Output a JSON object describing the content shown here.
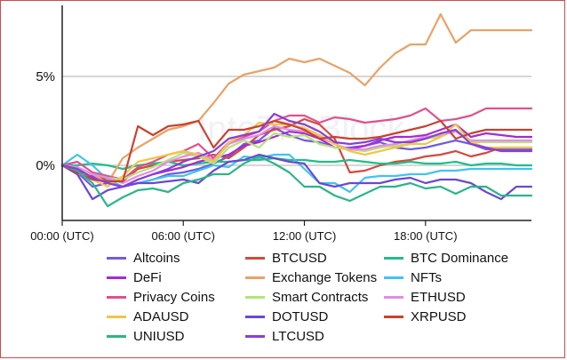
{
  "chart_data": {
    "type": "line",
    "watermark": "IntoTheBlock",
    "x_ticks": [
      "00:00 (UTC)",
      "06:00 (UTC)",
      "12:00 (UTC)",
      "18:00 (UTC)"
    ],
    "x_tick_hours": [
      0,
      6,
      12,
      18
    ],
    "y_ticks": [
      "5%",
      "0%"
    ],
    "y_tick_values": [
      5,
      0
    ],
    "ylim": [
      -3.1,
      9.0
    ],
    "xlim": [
      0,
      23.25
    ],
    "grid": "horizontal",
    "legend_position": "bottom",
    "x": [
      0,
      0.75,
      1.5,
      2.25,
      3,
      3.75,
      4.5,
      5.25,
      6,
      6.75,
      7.5,
      8.25,
      9,
      9.75,
      10.5,
      11.25,
      12,
      12.75,
      13.5,
      14.25,
      15,
      15.75,
      16.5,
      17.25,
      18,
      18.75,
      19.5,
      20.25,
      21,
      21.75,
      22.5,
      23.25
    ],
    "series": [
      {
        "name": "Altcoins",
        "color": "#6f5ce0",
        "values": [
          0,
          -0.4,
          -1.2,
          -1.0,
          -1.2,
          -1.0,
          -0.8,
          -0.5,
          -0.4,
          -0.2,
          0.1,
          0.5,
          1.2,
          1.4,
          2.1,
          1.7,
          1.4,
          1.3,
          1.0,
          1.0,
          1.1,
          1.3,
          1.0,
          0.9,
          1.0,
          1.2,
          1.4,
          1.2,
          0.9,
          0.9,
          0.9,
          0.9
        ]
      },
      {
        "name": "BTCUSD",
        "color": "#d4493f",
        "values": [
          0,
          -0.3,
          -0.6,
          -0.8,
          -0.9,
          -0.2,
          0.0,
          0.2,
          0.3,
          0.4,
          0.6,
          0.4,
          1.0,
          1.7,
          2.0,
          2.2,
          2.6,
          2.3,
          1.5,
          -0.4,
          -0.3,
          0.0,
          0.2,
          0.3,
          0.5,
          0.6,
          0.8,
          0.5,
          0.7,
          1.0,
          1.0,
          1.0
        ]
      },
      {
        "name": "BTC Dominance",
        "color": "#1fbf88",
        "values": [
          0,
          0.0,
          0.1,
          0.0,
          -0.2,
          0.0,
          0.1,
          0.2,
          0.0,
          0.1,
          0.2,
          0.2,
          0.3,
          0.3,
          0.4,
          0.3,
          0.3,
          0.2,
          0.2,
          0.3,
          0.2,
          0.1,
          0.1,
          0.2,
          0.1,
          0.1,
          0.2,
          0.0,
          0.1,
          0.1,
          0.0,
          0.0
        ]
      },
      {
        "name": "DeFi",
        "color": "#a52ccf",
        "values": [
          0,
          -0.3,
          -0.6,
          -1.0,
          -1.2,
          -0.8,
          -0.5,
          -0.3,
          -0.1,
          0.2,
          0.4,
          0.6,
          1.1,
          1.3,
          1.6,
          1.9,
          1.8,
          1.5,
          1.0,
          0.9,
          1.1,
          1.4,
          1.6,
          1.6,
          1.7,
          2.0,
          2.3,
          1.6,
          1.8,
          1.7,
          1.6,
          1.6
        ]
      },
      {
        "name": "Exchange Tokens",
        "color": "#eaa267",
        "values": [
          0,
          -0.5,
          -0.5,
          -1.0,
          0.4,
          1.0,
          1.5,
          2.0,
          2.2,
          2.5,
          3.5,
          4.6,
          5.1,
          5.3,
          5.5,
          6.0,
          5.8,
          6.0,
          5.6,
          5.2,
          4.5,
          5.5,
          6.3,
          6.8,
          6.8,
          8.5,
          6.9,
          7.6,
          7.6,
          7.6,
          7.6,
          7.6
        ]
      },
      {
        "name": "NFTs",
        "color": "#3fc4f0",
        "values": [
          0,
          0.6,
          0.0,
          -0.8,
          -1.2,
          -1.0,
          -0.8,
          -0.6,
          -0.6,
          -0.3,
          0.0,
          -0.1,
          0.5,
          0.4,
          0.6,
          0.6,
          -0.2,
          -1.0,
          -1.0,
          -1.5,
          -0.7,
          -0.6,
          -0.6,
          -0.5,
          -0.5,
          -0.3,
          -0.3,
          -0.2,
          -0.2,
          -0.2,
          -0.2,
          -0.2
        ]
      },
      {
        "name": "Privacy Coins",
        "color": "#e0508c",
        "values": [
          0,
          0.2,
          -0.4,
          -0.6,
          -0.8,
          -0.1,
          0.2,
          0.6,
          0.8,
          1.2,
          0.4,
          1.3,
          1.6,
          1.9,
          2.5,
          2.8,
          2.8,
          2.4,
          2.7,
          2.6,
          2.4,
          2.5,
          2.6,
          2.8,
          3.2,
          2.5,
          2.6,
          2.8,
          3.2,
          3.2,
          3.2,
          3.2
        ]
      },
      {
        "name": "Smart Contracts",
        "color": "#b6e37a",
        "values": [
          0,
          -0.2,
          -0.5,
          -0.7,
          -0.8,
          -0.4,
          -0.1,
          0.3,
          0.7,
          0.5,
          0.1,
          1.0,
          1.4,
          1.0,
          1.8,
          1.6,
          1.7,
          1.2,
          1.0,
          0.9,
          0.8,
          1.0,
          1.1,
          1.2,
          1.5,
          1.6,
          2.0,
          1.3,
          1.3,
          1.3,
          1.3,
          1.3
        ]
      },
      {
        "name": "ETHUSD",
        "color": "#e48ce8",
        "values": [
          0,
          -0.1,
          -0.5,
          -0.7,
          -1.0,
          -0.6,
          -0.3,
          0.2,
          0.5,
          0.7,
          0.3,
          1.2,
          1.5,
          1.7,
          2.2,
          2.0,
          1.9,
          1.6,
          1.2,
          0.9,
          0.9,
          1.1,
          1.2,
          1.4,
          1.6,
          1.7,
          1.9,
          1.4,
          1.4,
          1.4,
          1.4,
          1.4
        ]
      },
      {
        "name": "ADAUSD",
        "color": "#f0c64a",
        "values": [
          0,
          -0.4,
          -0.8,
          -1.2,
          -0.6,
          0.2,
          0.4,
          0.6,
          0.8,
          0.6,
          0.2,
          1.3,
          1.7,
          2.4,
          2.3,
          2.3,
          2.1,
          1.7,
          1.2,
          0.8,
          0.6,
          0.8,
          1.0,
          1.2,
          1.2,
          1.6,
          2.3,
          1.3,
          1.0,
          1.0,
          1.0,
          1.0
        ]
      },
      {
        "name": "DOTUSD",
        "color": "#6a48d6",
        "values": [
          0,
          -0.5,
          -1.9,
          -1.4,
          -1.2,
          -1.0,
          -1.0,
          -0.9,
          -0.8,
          -1.0,
          -0.3,
          0.2,
          0.3,
          0.6,
          0.4,
          0.2,
          0.1,
          -1.0,
          -1.2,
          -1.0,
          -1.0,
          -1.0,
          -0.8,
          -0.7,
          -1.0,
          -0.8,
          -0.8,
          -1.0,
          -1.5,
          -1.9,
          -1.2,
          -1.2
        ]
      },
      {
        "name": "XRPUSD",
        "color": "#c9422f",
        "values": [
          0,
          -0.4,
          -0.8,
          -0.9,
          -0.9,
          2.2,
          1.7,
          2.2,
          2.3,
          2.5,
          1.0,
          2.0,
          2.0,
          2.2,
          2.5,
          2.3,
          2.0,
          1.5,
          1.6,
          1.5,
          1.5,
          1.6,
          1.8,
          2.0,
          2.2,
          2.5,
          1.5,
          1.8,
          2.0,
          2.0,
          2.0,
          2.0
        ]
      },
      {
        "name": "UNIUSD",
        "color": "#2ab58a",
        "values": [
          0,
          -0.3,
          -1.0,
          -2.3,
          -1.8,
          -1.4,
          -1.3,
          -1.5,
          -1.0,
          -0.8,
          -0.5,
          -0.5,
          0.1,
          0.5,
          0.1,
          -0.4,
          -1.2,
          -1.2,
          -1.7,
          -2.0,
          -1.6,
          -1.2,
          -1.2,
          -1.0,
          -1.3,
          -1.2,
          -1.6,
          -1.2,
          -1.2,
          -1.7,
          -1.7,
          -1.7
        ]
      },
      {
        "name": "LTCUSD",
        "color": "#8a3fd6",
        "values": [
          0,
          -0.2,
          -0.7,
          -1.0,
          -1.2,
          -0.8,
          -0.5,
          -0.2,
          0.2,
          0.5,
          0.8,
          1.5,
          1.7,
          1.9,
          2.9,
          2.5,
          2.3,
          1.9,
          1.3,
          1.2,
          1.3,
          1.5,
          1.3,
          1.3,
          1.5,
          1.8,
          2.0,
          1.2,
          1.0,
          0.8,
          0.8,
          0.8
        ]
      }
    ]
  }
}
